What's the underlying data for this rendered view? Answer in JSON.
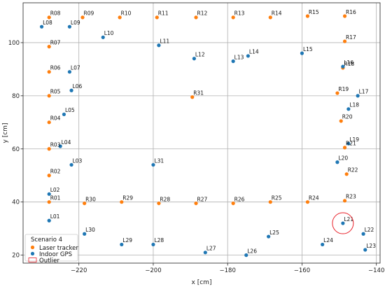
{
  "chart_data": {
    "type": "scatter",
    "xlabel": "x [cm]",
    "ylabel": "y [cm]",
    "xlim": [
      -235,
      -139
    ],
    "ylim": [
      17,
      115
    ],
    "xticks": [
      -220,
      -200,
      -180,
      -160,
      -140
    ],
    "yticks": [
      20,
      40,
      60,
      80,
      100
    ],
    "grid": true,
    "legend": {
      "title": "Scenario 4",
      "placement": "lower-left"
    },
    "series": [
      {
        "name": "Laser tracker",
        "color": "#ff7f0e",
        "points": [
          {
            "label": "R01",
            "x": -228,
            "y": 40
          },
          {
            "label": "R02",
            "x": -228,
            "y": 50
          },
          {
            "label": "R03",
            "x": -228,
            "y": 60
          },
          {
            "label": "R04",
            "x": -228,
            "y": 70
          },
          {
            "label": "R05",
            "x": -228,
            "y": 80
          },
          {
            "label": "R06",
            "x": -228,
            "y": 89
          },
          {
            "label": "R07",
            "x": -228,
            "y": 98.5
          },
          {
            "label": "R08",
            "x": -228,
            "y": 109.5
          },
          {
            "label": "R09",
            "x": -219,
            "y": 109.5
          },
          {
            "label": "R10",
            "x": -209,
            "y": 109.5
          },
          {
            "label": "R11",
            "x": -199,
            "y": 109.5
          },
          {
            "label": "R12",
            "x": -188.5,
            "y": 109.5
          },
          {
            "label": "R13",
            "x": -178.5,
            "y": 109.5
          },
          {
            "label": "R14",
            "x": -168.5,
            "y": 109.5
          },
          {
            "label": "R15",
            "x": -158.5,
            "y": 110
          },
          {
            "label": "R16",
            "x": -148.5,
            "y": 110
          },
          {
            "label": "R17",
            "x": -148.5,
            "y": 100.5
          },
          {
            "label": "R18",
            "x": -149,
            "y": 90.5
          },
          {
            "label": "R19",
            "x": -150.5,
            "y": 81
          },
          {
            "label": "R20",
            "x": -149.5,
            "y": 70.5
          },
          {
            "label": "R21",
            "x": -148.5,
            "y": 60.5
          },
          {
            "label": "R22",
            "x": -148,
            "y": 50.5
          },
          {
            "label": "R23",
            "x": -148.5,
            "y": 40.5
          },
          {
            "label": "R24",
            "x": -158.5,
            "y": 40
          },
          {
            "label": "R25",
            "x": -168.5,
            "y": 40
          },
          {
            "label": "R26",
            "x": -178.5,
            "y": 39.5
          },
          {
            "label": "R27",
            "x": -188.5,
            "y": 39.5
          },
          {
            "label": "R28",
            "x": -198.5,
            "y": 39.5
          },
          {
            "label": "R29",
            "x": -208.5,
            "y": 40
          },
          {
            "label": "R30",
            "x": -218.5,
            "y": 39.5
          },
          {
            "label": "R31",
            "x": -189.5,
            "y": 79.5
          }
        ]
      },
      {
        "name": "Indoor GPS",
        "color": "#1f77b4",
        "points": [
          {
            "label": "L01",
            "x": -228,
            "y": 33
          },
          {
            "label": "L02",
            "x": -228,
            "y": 43
          },
          {
            "label": "L03",
            "x": -222,
            "y": 54
          },
          {
            "label": "L04",
            "x": -225,
            "y": 61
          },
          {
            "label": "L05",
            "x": -224,
            "y": 73
          },
          {
            "label": "L06",
            "x": -222,
            "y": 82
          },
          {
            "label": "L07",
            "x": -222.5,
            "y": 89
          },
          {
            "label": "L08",
            "x": -230,
            "y": 106
          },
          {
            "label": "L09",
            "x": -222.5,
            "y": 106
          },
          {
            "label": "L10",
            "x": -213.5,
            "y": 102
          },
          {
            "label": "L11",
            "x": -198.5,
            "y": 99
          },
          {
            "label": "L12",
            "x": -189,
            "y": 94
          },
          {
            "label": "L13",
            "x": -178.5,
            "y": 93
          },
          {
            "label": "L14",
            "x": -174.5,
            "y": 95
          },
          {
            "label": "L15",
            "x": -160,
            "y": 96
          },
          {
            "label": "L16",
            "x": -149,
            "y": 91
          },
          {
            "label": "L17",
            "x": -145,
            "y": 80
          },
          {
            "label": "L18",
            "x": -147.5,
            "y": 75
          },
          {
            "label": "L19",
            "x": -147.5,
            "y": 62
          },
          {
            "label": "L20",
            "x": -150.5,
            "y": 55
          },
          {
            "label": "L21",
            "x": -149,
            "y": 32
          },
          {
            "label": "L22",
            "x": -143.5,
            "y": 28
          },
          {
            "label": "L23",
            "x": -143,
            "y": 22
          },
          {
            "label": "L24",
            "x": -154.5,
            "y": 24
          },
          {
            "label": "L25",
            "x": -169,
            "y": 27
          },
          {
            "label": "L26",
            "x": -175,
            "y": 20
          },
          {
            "label": "L27",
            "x": -186,
            "y": 21
          },
          {
            "label": "L28",
            "x": -200,
            "y": 24
          },
          {
            "label": "L29",
            "x": -208.5,
            "y": 24
          },
          {
            "label": "L30",
            "x": -218.5,
            "y": 28
          },
          {
            "label": "L31",
            "x": -200,
            "y": 54
          }
        ]
      },
      {
        "name": "Outlier",
        "color": "#e8212a",
        "marker": "circle-outline",
        "points": [
          {
            "x": -149,
            "y": 32
          }
        ]
      }
    ]
  }
}
